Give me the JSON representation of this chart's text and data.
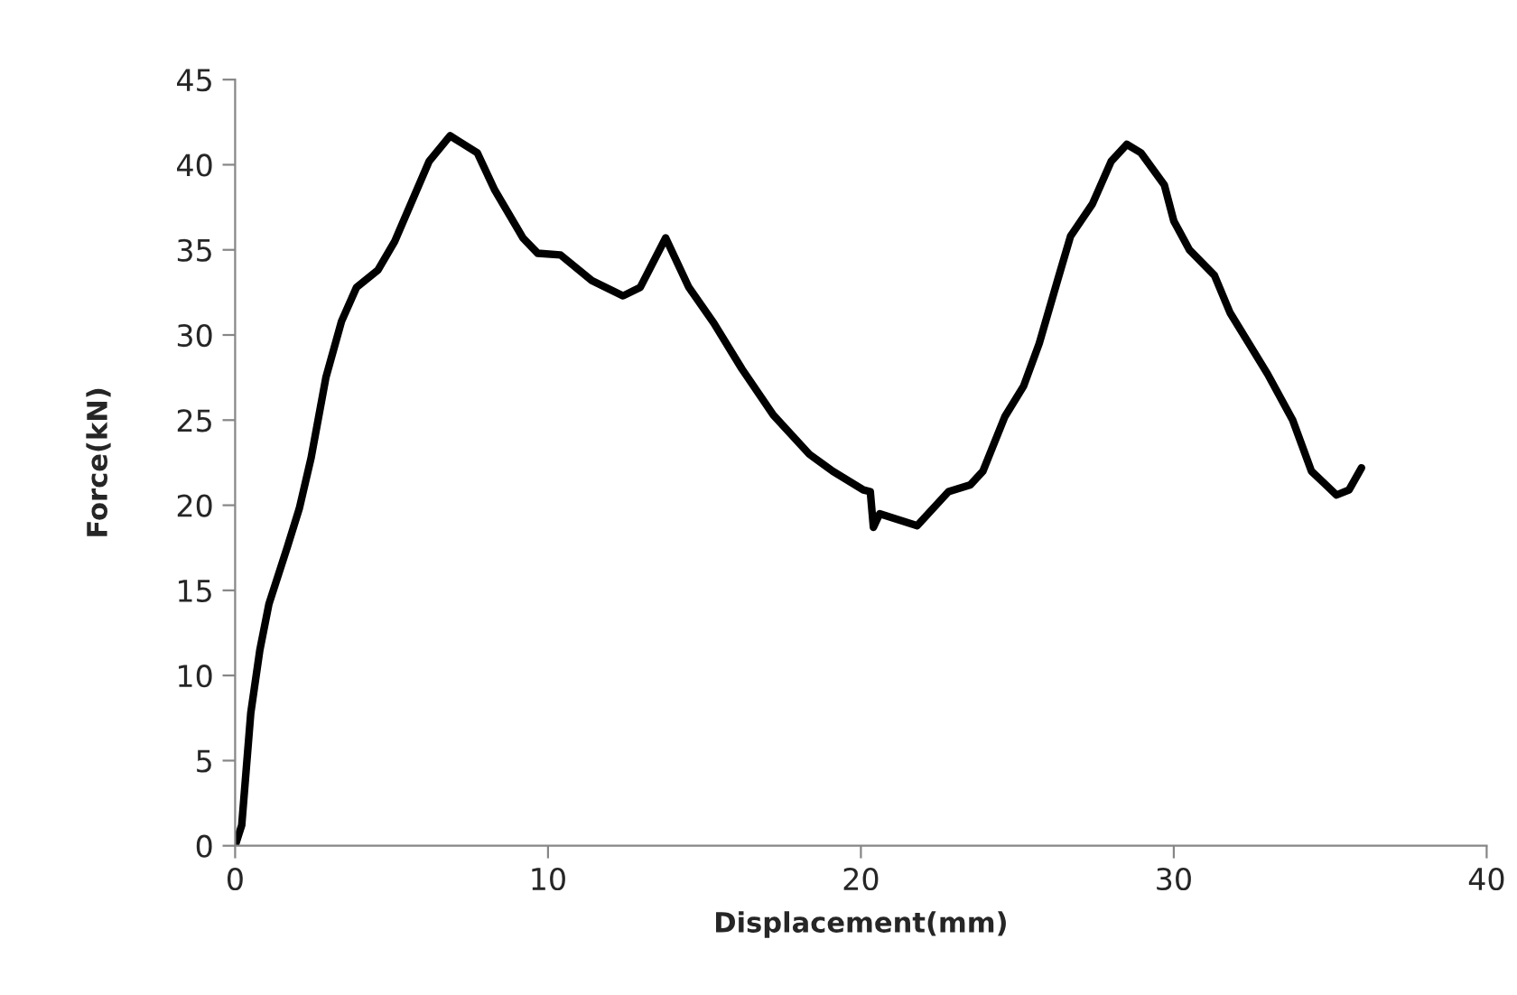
{
  "chart_data": {
    "type": "line",
    "xlabel": "Displacement(mm)",
    "ylabel": "Force(kN)",
    "xlim": [
      0,
      40
    ],
    "xticks": [
      0,
      10,
      20,
      30,
      40
    ],
    "ylim": [
      0,
      45
    ],
    "yticks": [
      0,
      5,
      10,
      15,
      20,
      25,
      30,
      35,
      40,
      45
    ],
    "grid": false,
    "series": [
      {
        "color": "#000000",
        "x": [
          0,
          0.21,
          0.5,
          0.79,
          1.08,
          1.66,
          2.05,
          2.43,
          2.9,
          3.4,
          3.88,
          4.56,
          5.1,
          6.2,
          6.87,
          7.74,
          8.3,
          9.2,
          9.67,
          10.4,
          11.4,
          12.4,
          12.95,
          13.76,
          14.5,
          15.3,
          16.2,
          17.2,
          18.35,
          19.1,
          20.08,
          20.3,
          20.4,
          20.6,
          21.8,
          22.8,
          23.5,
          23.9,
          24.6,
          25.2,
          25.7,
          26.3,
          26.7,
          27.4,
          28.0,
          28.5,
          28.95,
          29.7,
          30.0,
          30.5,
          31.3,
          31.8,
          32.4,
          33.0,
          33.8,
          34.4,
          34.8,
          35.2,
          35.6,
          36.0
        ],
        "values": [
          0,
          1.2,
          7.8,
          11.5,
          14.2,
          17.5,
          19.8,
          22.8,
          27.5,
          30.8,
          32.8,
          33.8,
          35.5,
          40.2,
          41.7,
          40.7,
          38.5,
          35.7,
          34.8,
          34.7,
          33.2,
          32.3,
          32.8,
          35.7,
          32.8,
          30.7,
          28.0,
          25.3,
          23.0,
          22.0,
          20.9,
          20.8,
          18.7,
          19.5,
          18.8,
          20.8,
          21.2,
          22.0,
          25.2,
          27.0,
          29.5,
          33.3,
          35.8,
          37.7,
          40.2,
          41.2,
          40.7,
          38.8,
          36.7,
          35.0,
          33.5,
          31.3,
          29.5,
          27.7,
          25.0,
          22.0,
          21.3,
          20.6,
          20.9,
          22.2
        ]
      }
    ]
  }
}
